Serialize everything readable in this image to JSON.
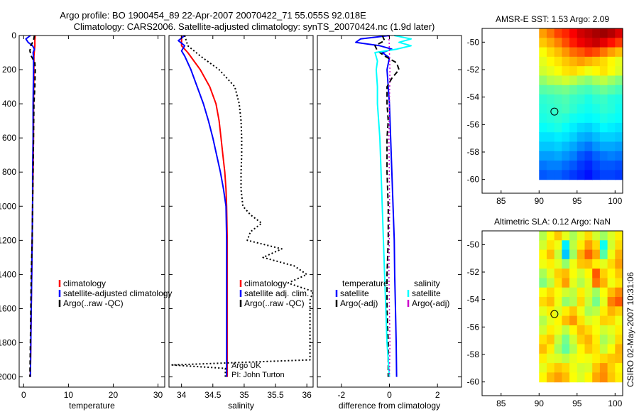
{
  "header": {
    "line1": "Argo profile: BO 1900454_89 22-Apr-2007 20070422_71 55.055S 92.018E",
    "line2": "Climatology: CARS2006. Satellite-adjusted climatology: synTS_20070424.nc (1.9d later)"
  },
  "side_stamp": "CSIRO 02-May-2007 10:31:06",
  "colors": {
    "climatology": "#ff0000",
    "satellite": "#0000ff",
    "argo": "#000000",
    "cyan": "#00ffff",
    "magenta": "#cc00cc"
  },
  "chart_data": [
    {
      "type": "line",
      "id": "temperature",
      "xlabel": "temperature",
      "xlim": [
        -1,
        31.5
      ],
      "ylim": [
        2060,
        0
      ],
      "xticks": [
        0,
        10,
        20,
        30
      ],
      "xtick_labels": [
        "0",
        "10",
        "20",
        "30"
      ],
      "yticks": [
        0,
        200,
        400,
        600,
        800,
        1000,
        1200,
        1400,
        1600,
        1800,
        2000
      ],
      "ytick_labels": [
        "0",
        "200",
        "400",
        "600",
        "800",
        "1000",
        "1200",
        "1400",
        "1600",
        "1800",
        "2000"
      ],
      "series": [
        {
          "name": "climatology",
          "color": "#ff0000",
          "dash": "",
          "width": 2,
          "depth": [
            0,
            30,
            60,
            90,
            120,
            200,
            400,
            600,
            800,
            1000,
            1200,
            1400,
            1600,
            1800,
            2000
          ],
          "values": [
            2.6,
            2.5,
            2.5,
            2.4,
            2.3,
            2.3,
            2.2,
            2.2,
            2.1,
            2.0,
            1.9,
            1.8,
            1.7,
            1.6,
            1.5
          ]
        },
        {
          "name": "satellite-adjusted climatology",
          "color": "#0000ff",
          "dash": "",
          "width": 2,
          "depth": [
            0,
            20,
            40,
            60,
            80,
            100,
            130,
            200,
            400,
            600,
            800,
            1000,
            1200,
            1400,
            1600,
            1800,
            2000
          ],
          "values": [
            1.5,
            0.5,
            1.0,
            2.0,
            2.4,
            2.1,
            2.2,
            2.2,
            2.1,
            2.1,
            2.0,
            2.0,
            1.9,
            1.8,
            1.7,
            1.6,
            1.5
          ]
        },
        {
          "name": "Argo(..raw -QC)",
          "color": "#000000",
          "dash": "6,4",
          "width": 2,
          "depth": [
            0,
            30,
            60,
            90,
            120,
            160,
            200,
            300,
            400,
            600,
            800,
            1000,
            1200,
            1400,
            1600,
            1800,
            2000
          ],
          "values": [
            2.4,
            2.2,
            1.6,
            1.4,
            1.7,
            2.5,
            2.6,
            2.5,
            2.3,
            2.2,
            2.1,
            2.0,
            1.9,
            1.7,
            1.6,
            1.5,
            1.4
          ]
        }
      ],
      "legend": {
        "position": "lower-right",
        "entries": [
          {
            "label": "climatology",
            "color": "#ff0000"
          },
          {
            "label": "satellite-adjusted climatology",
            "color": "#0000ff"
          },
          {
            "label": "Argo(..raw -QC)",
            "color": "#000000"
          }
        ]
      }
    },
    {
      "type": "line",
      "id": "salinity",
      "xlabel": "salinity",
      "xlim": [
        33.8,
        36.1
      ],
      "ylim": [
        2060,
        0
      ],
      "xticks": [
        34,
        34.5,
        35,
        35.5,
        36
      ],
      "xtick_labels": [
        "34",
        "34.5",
        "35",
        "35.5",
        "36"
      ],
      "series": [
        {
          "name": "climatology",
          "color": "#ff0000",
          "dash": "",
          "width": 2,
          "depth": [
            0,
            60,
            100,
            200,
            300,
            400,
            500,
            600,
            700,
            800,
            900,
            1000,
            1200,
            1400,
            1600,
            1800,
            2000
          ],
          "values": [
            34.0,
            34.0,
            34.1,
            34.3,
            34.45,
            34.55,
            34.6,
            34.63,
            34.66,
            34.69,
            34.71,
            34.72,
            34.73,
            34.73,
            34.73,
            34.73,
            34.73
          ]
        },
        {
          "name": "satellite adj. clim.",
          "color": "#0000ff",
          "dash": "",
          "width": 2,
          "depth": [
            0,
            30,
            60,
            90,
            120,
            200,
            300,
            400,
            500,
            600,
            700,
            800,
            900,
            1000,
            1200,
            1400,
            1600,
            1800,
            2000
          ],
          "values": [
            34.05,
            33.95,
            34.05,
            34.0,
            34.05,
            34.15,
            34.25,
            34.35,
            34.43,
            34.5,
            34.56,
            34.62,
            34.67,
            34.71,
            34.72,
            34.72,
            34.72,
            34.72,
            34.72
          ]
        },
        {
          "name": "Argo(..raw -QC)",
          "color": "#000000",
          "dash": "2,3",
          "width": 2,
          "depth": [
            0,
            60,
            120,
            200,
            300,
            400,
            500,
            600,
            700,
            800,
            900,
            1000,
            1050,
            1100,
            1150,
            1200,
            1250,
            1300,
            1350,
            1400,
            1450,
            1500,
            1550,
            1600,
            1900,
            1930,
            1950,
            2000
          ],
          "values": [
            34.05,
            34.1,
            34.3,
            34.6,
            34.85,
            34.92,
            34.95,
            34.96,
            34.96,
            34.95,
            34.95,
            34.98,
            35.1,
            35.28,
            35.1,
            35.05,
            35.6,
            35.3,
            35.8,
            36.0,
            35.7,
            36.1,
            36.05,
            36.05,
            36.05,
            33.85,
            34.7,
            34.7
          ]
        }
      ],
      "legend": {
        "position": "lower-right",
        "entries": [
          {
            "label": "climatology",
            "color": "#ff0000"
          },
          {
            "label": "satellite adj. clim.",
            "color": "#0000ff"
          },
          {
            "label": "Argo(..raw -QC)",
            "color": "#000000"
          }
        ]
      },
      "annotations": [
        "Argo UK",
        "PI: John Turton"
      ]
    },
    {
      "type": "line",
      "id": "difference",
      "xlabel": "difference from climatology",
      "xlim": [
        -3,
        3
      ],
      "ylim": [
        2060,
        0
      ],
      "xticks": [
        -2,
        0,
        2
      ],
      "xtick_labels": [
        "-2",
        "0",
        "2"
      ],
      "series": [
        {
          "name": "temperature satellite",
          "color": "#0000ff",
          "dash": "",
          "width": 2,
          "depth": [
            0,
            20,
            40,
            60,
            80,
            100,
            130,
            200,
            400,
            600,
            800,
            1000,
            1200,
            1400,
            1600,
            1800,
            2000
          ],
          "values": [
            0.0,
            -1.2,
            -1.4,
            -0.4,
            0.1,
            -0.3,
            0.0,
            -0.1,
            0.0,
            0.05,
            0.1,
            0.15,
            0.2,
            0.22,
            0.25,
            0.28,
            0.3
          ]
        },
        {
          "name": "temperature Argo(-adj)",
          "color": "#000000",
          "dash": "7,4",
          "width": 2,
          "depth": [
            0,
            30,
            60,
            90,
            120,
            160,
            200,
            250,
            300,
            400,
            500,
            600,
            800,
            1000,
            1200,
            1400,
            1600,
            1800,
            2000
          ],
          "values": [
            -0.3,
            -0.2,
            -0.6,
            -0.5,
            -0.2,
            0.3,
            0.4,
            0.1,
            -0.1,
            -0.1,
            -0.05,
            -0.1,
            -0.1,
            -0.05,
            -0.05,
            -0.1,
            -0.1,
            -0.05,
            -0.05
          ]
        },
        {
          "name": "salinity satellite",
          "color": "#00ffff",
          "dash": "",
          "width": 2,
          "depth": [
            0,
            20,
            40,
            60,
            80,
            100,
            150,
            200,
            300,
            400,
            500,
            600,
            800,
            1000,
            1200,
            1400,
            1600,
            1800,
            2000
          ],
          "values": [
            0.2,
            0.9,
            0.4,
            0.9,
            0.3,
            -0.6,
            -0.5,
            -0.55,
            -0.5,
            -0.5,
            -0.45,
            -0.4,
            -0.35,
            -0.3,
            -0.25,
            -0.2,
            -0.15,
            -0.1,
            0.0
          ]
        },
        {
          "name": "salinity Argo(-adj)",
          "color": "#cc00cc",
          "dash": "2,3",
          "width": 1.5,
          "depth": [
            0,
            200,
            600,
            1000,
            1400,
            1800,
            2000
          ],
          "values": [
            -0.02,
            0.02,
            -0.02,
            0.01,
            -0.02,
            0.02,
            0.0
          ]
        }
      ],
      "legend": {
        "position": "lower",
        "columns": [
          {
            "title": "temperature",
            "entries": [
              {
                "label": "satellite",
                "color": "#0000ff"
              },
              {
                "label": "Argo(-adj)",
                "color": "#000000"
              }
            ]
          },
          {
            "title": "salinity",
            "entries": [
              {
                "label": "satellite",
                "color": "#00ffff"
              },
              {
                "label": "Argo(-adj)",
                "color": "#cc00cc"
              }
            ]
          }
        ]
      }
    },
    {
      "type": "heatmap",
      "id": "sst-map",
      "title": "AMSR-E SST: 1.53 Argo: 2.09",
      "xlim": [
        82.5,
        101
      ],
      "ylim": [
        -61,
        -49
      ],
      "xticks": [
        85,
        90,
        95,
        100
      ],
      "xtick_labels": [
        "85",
        "90",
        "95",
        "100"
      ],
      "yticks": [
        -50,
        -52,
        -54,
        -56,
        -58,
        -60
      ],
      "ytick_labels": [
        "-50",
        "-52",
        "-54",
        "-56",
        "-58",
        "-60"
      ],
      "extent": {
        "lon": [
          90,
          101
        ],
        "lat": [
          -60,
          -49
        ]
      },
      "value_range": [
        0,
        10
      ],
      "marker": {
        "lon": 92.018,
        "lat": -55.055
      },
      "values": [
        [
          7.2,
          7.6,
          8.1,
          8.4,
          8.8,
          9.2,
          9.4,
          9.6,
          9.7,
          9.5,
          9.1
        ],
        [
          6.8,
          7.1,
          7.5,
          8.0,
          8.5,
          8.9,
          9.1,
          9.3,
          9.0,
          8.6,
          8.2
        ],
        [
          6.2,
          6.6,
          6.9,
          7.3,
          7.7,
          7.9,
          8.2,
          8.0,
          7.6,
          7.2,
          6.9
        ],
        [
          6.0,
          6.3,
          6.5,
          6.8,
          7.0,
          7.2,
          7.0,
          6.8,
          6.6,
          6.3,
          6.0
        ],
        [
          5.8,
          6.0,
          6.2,
          6.5,
          6.6,
          6.4,
          6.1,
          6.3,
          6.5,
          6.2,
          5.9
        ],
        [
          5.2,
          5.5,
          5.6,
          5.8,
          5.6,
          5.3,
          5.1,
          5.4,
          5.6,
          5.3,
          5.0
        ],
        [
          4.6,
          4.7,
          4.8,
          4.9,
          4.7,
          4.5,
          4.4,
          4.6,
          4.8,
          4.6,
          4.4
        ],
        [
          4.2,
          4.3,
          4.4,
          4.5,
          4.3,
          4.2,
          4.0,
          4.2,
          4.3,
          4.1,
          4.0
        ],
        [
          4.1,
          4.2,
          4.3,
          4.4,
          4.2,
          4.0,
          3.9,
          4.0,
          4.2,
          4.1,
          3.9
        ],
        [
          4.0,
          4.1,
          4.2,
          4.1,
          3.9,
          3.8,
          3.7,
          3.8,
          4.0,
          3.9,
          3.8
        ],
        [
          3.8,
          3.9,
          4.0,
          3.8,
          3.6,
          3.4,
          3.3,
          3.5,
          3.7,
          3.6,
          3.5
        ],
        [
          3.5,
          3.5,
          3.6,
          3.5,
          3.3,
          3.0,
          2.9,
          3.1,
          3.3,
          3.3,
          3.2
        ],
        [
          3.2,
          3.2,
          3.3,
          3.1,
          2.9,
          2.6,
          2.4,
          2.7,
          2.9,
          2.9,
          2.8
        ],
        [
          2.8,
          2.8,
          2.9,
          2.7,
          2.5,
          2.1,
          1.9,
          2.2,
          2.4,
          2.5,
          2.4
        ],
        [
          2.4,
          2.5,
          2.5,
          2.3,
          2.1,
          1.8,
          1.6,
          1.9,
          2.1,
          2.1,
          2.0
        ],
        [
          2.1,
          2.2,
          2.2,
          2.0,
          1.8,
          1.6,
          1.4,
          1.7,
          1.9,
          1.9,
          1.8
        ]
      ]
    },
    {
      "type": "heatmap",
      "id": "sla-map",
      "title": "Altimetric SLA: 0.12 Argo: NaN",
      "xlim": [
        82.5,
        101
      ],
      "ylim": [
        -61,
        -49
      ],
      "xticks": [
        85,
        90,
        95,
        100
      ],
      "xtick_labels": [
        "85",
        "90",
        "95",
        "100"
      ],
      "yticks": [
        -50,
        -52,
        -54,
        -56,
        -58,
        -60
      ],
      "ytick_labels": [
        "-50",
        "-52",
        "-54",
        "-56",
        "-58",
        "-60"
      ],
      "extent": {
        "lon": [
          90,
          101
        ],
        "lat": [
          -60,
          -49
        ]
      },
      "value_range": [
        0,
        10
      ],
      "marker": {
        "lon": 92.018,
        "lat": -55.055
      },
      "values": [
        [
          5.5,
          6.2,
          6.8,
          6.0,
          5.4,
          6.0,
          6.6,
          5.8,
          5.3,
          5.9,
          6.4
        ],
        [
          5.8,
          6.5,
          6.1,
          3.6,
          5.6,
          6.4,
          7.2,
          6.6,
          3.9,
          5.8,
          6.6
        ],
        [
          6.3,
          6.9,
          5.7,
          3.2,
          5.3,
          7.0,
          7.8,
          7.1,
          4.6,
          6.1,
          7.0
        ],
        [
          6.1,
          6.4,
          6.0,
          5.2,
          6.1,
          6.8,
          6.9,
          6.4,
          6.0,
          6.6,
          7.2
        ],
        [
          5.4,
          6.0,
          6.7,
          6.9,
          6.2,
          5.8,
          6.3,
          7.9,
          6.7,
          6.3,
          6.8
        ],
        [
          5.0,
          5.6,
          6.5,
          7.2,
          6.0,
          5.5,
          6.0,
          7.6,
          7.0,
          6.1,
          6.5
        ],
        [
          6.2,
          6.6,
          6.2,
          5.8,
          5.6,
          6.4,
          5.9,
          5.3,
          6.2,
          6.9,
          7.4
        ],
        [
          6.6,
          6.9,
          6.1,
          5.2,
          5.5,
          6.6,
          5.7,
          4.9,
          6.0,
          7.5,
          7.9
        ],
        [
          6.0,
          6.4,
          5.9,
          6.4,
          6.8,
          6.1,
          5.4,
          5.6,
          6.4,
          7.0,
          6.7
        ],
        [
          5.5,
          6.0,
          6.3,
          6.9,
          7.3,
          6.5,
          5.9,
          6.1,
          6.7,
          6.6,
          6.1
        ],
        [
          5.8,
          6.4,
          6.1,
          5.6,
          6.3,
          6.9,
          6.6,
          6.2,
          5.8,
          6.0,
          6.4
        ],
        [
          6.5,
          6.8,
          5.7,
          4.9,
          5.8,
          6.7,
          7.0,
          6.4,
          5.4,
          5.8,
          6.6
        ],
        [
          6.9,
          6.4,
          5.4,
          4.7,
          5.5,
          6.3,
          6.8,
          6.5,
          5.7,
          6.2,
          7.0
        ],
        [
          6.4,
          6.0,
          5.9,
          5.6,
          6.0,
          6.2,
          6.1,
          6.4,
          6.6,
          6.8,
          6.9
        ],
        [
          6.0,
          6.5,
          6.8,
          6.6,
          6.1,
          5.8,
          5.9,
          6.8,
          7.3,
          6.7,
          6.3
        ],
        [
          6.3,
          6.9,
          7.2,
          6.9,
          6.2,
          5.9,
          6.3,
          7.1,
          7.4,
          6.8,
          6.4
        ]
      ]
    }
  ]
}
